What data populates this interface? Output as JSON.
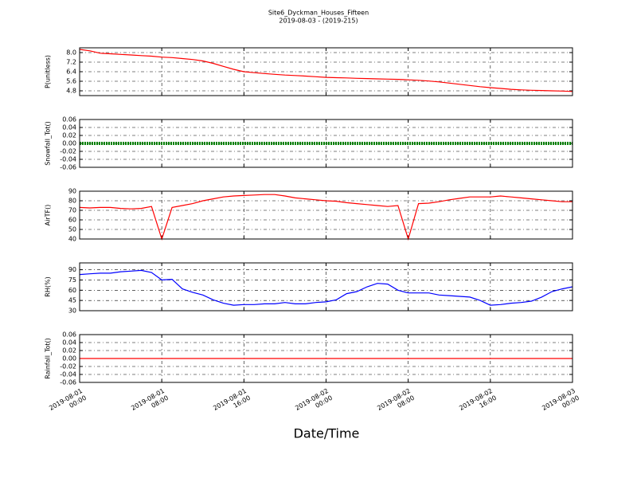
{
  "chart_data": [
    {
      "type": "line",
      "title": "Site6_Dyckman_Houses_Fifteen",
      "subtitle": "2019-08-03 - (2019-215)",
      "ylabel": "P(unitless)",
      "ylim": [
        4.4,
        8.4
      ],
      "yticks": [
        {
          "value": 4.8,
          "label": "4.8"
        },
        5.6,
        6.4,
        7.2,
        {
          "value": 8,
          "label": "8.0"
        }
      ],
      "grid": true,
      "series": [
        {
          "name": "P",
          "color": "#ff0000",
          "x": [
            "2019-08-01 00:00",
            "2019-08-01 01:00",
            "2019-08-01 02:00",
            "2019-08-01 03:00",
            "2019-08-01 04:00",
            "2019-08-01 05:00",
            "2019-08-01 06:00",
            "2019-08-01 07:00",
            "2019-08-01 08:00",
            "2019-08-01 09:00",
            "2019-08-01 10:00",
            "2019-08-01 11:00",
            "2019-08-01 12:00",
            "2019-08-01 13:00",
            "2019-08-01 14:00",
            "2019-08-01 15:00",
            "2019-08-01 16:00",
            "2019-08-01 17:00",
            "2019-08-01 18:00",
            "2019-08-01 19:00",
            "2019-08-01 20:00",
            "2019-08-01 21:00",
            "2019-08-01 22:00",
            "2019-08-01 23:00",
            "2019-08-02 00:00",
            "2019-08-02 01:00",
            "2019-08-02 02:00",
            "2019-08-02 03:00",
            "2019-08-02 04:00",
            "2019-08-02 05:00",
            "2019-08-02 06:00",
            "2019-08-02 07:00",
            "2019-08-02 08:00",
            "2019-08-02 09:00",
            "2019-08-02 10:00",
            "2019-08-02 11:00",
            "2019-08-02 12:00",
            "2019-08-02 13:00",
            "2019-08-02 14:00",
            "2019-08-02 15:00",
            "2019-08-02 16:00",
            "2019-08-02 17:00",
            "2019-08-02 18:00",
            "2019-08-02 19:00",
            "2019-08-02 20:00",
            "2019-08-02 21:00",
            "2019-08-02 22:00",
            "2019-08-02 23:00",
            "2019-08-03 00:00"
          ],
          "values": [
            8.27,
            8.15,
            7.95,
            7.9,
            7.85,
            7.8,
            7.75,
            7.7,
            7.62,
            7.58,
            7.5,
            7.42,
            7.3,
            7.1,
            6.85,
            6.6,
            6.4,
            6.32,
            6.25,
            6.18,
            6.12,
            6.08,
            6.03,
            5.98,
            5.93,
            5.9,
            5.88,
            5.85,
            5.83,
            5.8,
            5.78,
            5.76,
            5.72,
            5.68,
            5.62,
            5.55,
            5.45,
            5.35,
            5.25,
            5.15,
            5.07,
            5.0,
            4.93,
            4.88,
            4.85,
            4.83,
            4.8,
            4.78,
            4.75
          ]
        }
      ]
    },
    {
      "type": "line",
      "ylabel": "Snowfall_Tot()",
      "ylim": [
        -0.06,
        0.06
      ],
      "yticks": [
        -0.06,
        -0.04,
        -0.02,
        {
          "value": 0,
          "label": "0.00"
        },
        0.02,
        0.04,
        0.06
      ],
      "grid": true,
      "series": [
        {
          "name": "Snowfall_Tot",
          "color": "#008000",
          "x": [
            "2019-08-01 00:00",
            "2019-08-01 01:00",
            "2019-08-01 02:00",
            "2019-08-01 03:00",
            "2019-08-01 04:00",
            "2019-08-01 05:00",
            "2019-08-01 06:00",
            "2019-08-01 07:00",
            "2019-08-01 08:00",
            "2019-08-01 09:00",
            "2019-08-01 10:00",
            "2019-08-01 11:00",
            "2019-08-01 12:00",
            "2019-08-01 13:00",
            "2019-08-01 14:00",
            "2019-08-01 15:00",
            "2019-08-01 16:00",
            "2019-08-01 17:00",
            "2019-08-01 18:00",
            "2019-08-01 19:00",
            "2019-08-01 20:00",
            "2019-08-01 21:00",
            "2019-08-01 22:00",
            "2019-08-01 23:00",
            "2019-08-02 00:00",
            "2019-08-02 01:00",
            "2019-08-02 02:00",
            "2019-08-02 03:00",
            "2019-08-02 04:00",
            "2019-08-02 05:00",
            "2019-08-02 06:00",
            "2019-08-02 07:00",
            "2019-08-02 08:00",
            "2019-08-02 09:00",
            "2019-08-02 10:00",
            "2019-08-02 11:00",
            "2019-08-02 12:00",
            "2019-08-02 13:00",
            "2019-08-02 14:00",
            "2019-08-02 15:00",
            "2019-08-02 16:00",
            "2019-08-02 17:00",
            "2019-08-02 18:00",
            "2019-08-02 19:00",
            "2019-08-02 20:00",
            "2019-08-02 21:00",
            "2019-08-02 22:00",
            "2019-08-02 23:00",
            "2019-08-03 00:00"
          ],
          "values": [
            0,
            0,
            0,
            0,
            0,
            0,
            0,
            0,
            0,
            0,
            0,
            0,
            0,
            0,
            0,
            0,
            0,
            0,
            0,
            0,
            0,
            0,
            0,
            0,
            0,
            0,
            0,
            0,
            0,
            0,
            0,
            0,
            0,
            0,
            0,
            0,
            0,
            0,
            0,
            0,
            0,
            0,
            0,
            0,
            0,
            0,
            0,
            0,
            0
          ]
        }
      ]
    },
    {
      "type": "line",
      "ylabel": "AirTF()",
      "ylim": [
        40,
        90
      ],
      "yticks": [
        40,
        50,
        60,
        70,
        80,
        90
      ],
      "grid": true,
      "series": [
        {
          "name": "AirTF",
          "color": "#ff0000",
          "x": [
            "2019-08-01 00:00",
            "2019-08-01 01:00",
            "2019-08-01 02:00",
            "2019-08-01 03:00",
            "2019-08-01 04:00",
            "2019-08-01 05:00",
            "2019-08-01 06:00",
            "2019-08-01 07:00",
            "2019-08-01 08:00",
            "2019-08-01 09:00",
            "2019-08-01 10:00",
            "2019-08-01 11:00",
            "2019-08-01 12:00",
            "2019-08-01 13:00",
            "2019-08-01 14:00",
            "2019-08-01 15:00",
            "2019-08-01 16:00",
            "2019-08-01 17:00",
            "2019-08-01 18:00",
            "2019-08-01 19:00",
            "2019-08-01 20:00",
            "2019-08-01 21:00",
            "2019-08-01 22:00",
            "2019-08-01 23:00",
            "2019-08-02 00:00",
            "2019-08-02 01:00",
            "2019-08-02 02:00",
            "2019-08-02 03:00",
            "2019-08-02 04:00",
            "2019-08-02 05:00",
            "2019-08-02 06:00",
            "2019-08-02 07:00",
            "2019-08-02 08:00",
            "2019-08-02 09:00",
            "2019-08-02 10:00",
            "2019-08-02 11:00",
            "2019-08-02 12:00",
            "2019-08-02 13:00",
            "2019-08-02 14:00",
            "2019-08-02 15:00",
            "2019-08-02 16:00",
            "2019-08-02 17:00",
            "2019-08-02 18:00",
            "2019-08-02 19:00",
            "2019-08-02 20:00",
            "2019-08-02 21:00",
            "2019-08-02 22:00",
            "2019-08-02 23:00",
            "2019-08-03 00:00"
          ],
          "values": [
            73,
            72.5,
            73,
            73,
            72,
            71.5,
            72,
            74,
            40,
            73,
            75,
            77,
            80,
            82,
            84,
            85,
            85.5,
            86,
            86.5,
            86.5,
            85,
            83,
            82,
            81,
            80,
            79.5,
            78,
            77,
            76,
            75,
            74,
            75,
            40,
            77,
            77.5,
            79,
            81,
            82.5,
            84,
            84,
            84,
            85,
            84,
            83,
            82,
            81,
            80,
            79,
            79
          ]
        }
      ]
    },
    {
      "type": "line",
      "ylabel": "RH(%)",
      "ylim": [
        30,
        100
      ],
      "yticks": [
        30,
        45,
        60,
        75,
        90
      ],
      "grid": true,
      "series": [
        {
          "name": "RH",
          "color": "#0000ff",
          "x": [
            "2019-08-01 00:00",
            "2019-08-01 01:00",
            "2019-08-01 02:00",
            "2019-08-01 03:00",
            "2019-08-01 04:00",
            "2019-08-01 05:00",
            "2019-08-01 06:00",
            "2019-08-01 07:00",
            "2019-08-01 08:00",
            "2019-08-01 09:00",
            "2019-08-01 10:00",
            "2019-08-01 11:00",
            "2019-08-01 12:00",
            "2019-08-01 13:00",
            "2019-08-01 14:00",
            "2019-08-01 15:00",
            "2019-08-01 16:00",
            "2019-08-01 17:00",
            "2019-08-01 18:00",
            "2019-08-01 19:00",
            "2019-08-01 20:00",
            "2019-08-01 21:00",
            "2019-08-01 22:00",
            "2019-08-01 23:00",
            "2019-08-02 00:00",
            "2019-08-02 01:00",
            "2019-08-02 02:00",
            "2019-08-02 03:00",
            "2019-08-02 04:00",
            "2019-08-02 05:00",
            "2019-08-02 06:00",
            "2019-08-02 07:00",
            "2019-08-02 08:00",
            "2019-08-02 09:00",
            "2019-08-02 10:00",
            "2019-08-02 11:00",
            "2019-08-02 12:00",
            "2019-08-02 13:00",
            "2019-08-02 14:00",
            "2019-08-02 15:00",
            "2019-08-02 16:00",
            "2019-08-02 17:00",
            "2019-08-02 18:00",
            "2019-08-02 19:00",
            "2019-08-02 20:00",
            "2019-08-02 21:00",
            "2019-08-02 22:00",
            "2019-08-02 23:00",
            "2019-08-03 00:00"
          ],
          "values": [
            83,
            84,
            85,
            85,
            87,
            88,
            89,
            86,
            75,
            76,
            62,
            57,
            53,
            46,
            41,
            38,
            39,
            39,
            40,
            40,
            42,
            40,
            40,
            42,
            43,
            46,
            55,
            58,
            65,
            70,
            69,
            60,
            56,
            56,
            56,
            53,
            52,
            51,
            50,
            45,
            38,
            39,
            41,
            42,
            44,
            50,
            58,
            62,
            65
          ]
        }
      ]
    },
    {
      "type": "line",
      "ylabel": "Rainfall_Tot()",
      "xlabel": "Date/Time",
      "ylim": [
        -0.06,
        0.06
      ],
      "yticks": [
        -0.06,
        -0.04,
        -0.02,
        {
          "value": 0,
          "label": "0.00"
        },
        0.02,
        0.04,
        0.06
      ],
      "grid": true,
      "xlim": [
        "2019-08-01 00:00",
        "2019-08-03 00:00"
      ],
      "xticks": [
        "2019-08-01\n00:00",
        "2019-08-01\n08:00",
        "2019-08-01\n16:00",
        "2019-08-02\n00:00",
        "2019-08-02\n08:00",
        "2019-08-02\n16:00",
        "2019-08-03\n00:00"
      ],
      "series": [
        {
          "name": "Rainfall_Tot",
          "color": "#ff0000",
          "x": [
            "2019-08-01 00:00",
            "2019-08-01 01:00",
            "2019-08-01 02:00",
            "2019-08-01 03:00",
            "2019-08-01 04:00",
            "2019-08-01 05:00",
            "2019-08-01 06:00",
            "2019-08-01 07:00",
            "2019-08-01 08:00",
            "2019-08-01 09:00",
            "2019-08-01 10:00",
            "2019-08-01 11:00",
            "2019-08-01 12:00",
            "2019-08-01 13:00",
            "2019-08-01 14:00",
            "2019-08-01 15:00",
            "2019-08-01 16:00",
            "2019-08-01 17:00",
            "2019-08-01 18:00",
            "2019-08-01 19:00",
            "2019-08-01 20:00",
            "2019-08-01 21:00",
            "2019-08-01 22:00",
            "2019-08-01 23:00",
            "2019-08-02 00:00",
            "2019-08-02 01:00",
            "2019-08-02 02:00",
            "2019-08-02 03:00",
            "2019-08-02 04:00",
            "2019-08-02 05:00",
            "2019-08-02 06:00",
            "2019-08-02 07:00",
            "2019-08-02 08:00",
            "2019-08-02 09:00",
            "2019-08-02 10:00",
            "2019-08-02 11:00",
            "2019-08-02 12:00",
            "2019-08-02 13:00",
            "2019-08-02 14:00",
            "2019-08-02 15:00",
            "2019-08-02 16:00",
            "2019-08-02 17:00",
            "2019-08-02 18:00",
            "2019-08-02 19:00",
            "2019-08-02 20:00",
            "2019-08-02 21:00",
            "2019-08-02 22:00",
            "2019-08-02 23:00",
            "2019-08-03 00:00"
          ],
          "values": [
            0,
            0,
            0,
            0,
            0,
            0,
            0,
            0,
            0,
            0,
            0,
            0,
            0,
            0,
            0,
            0,
            0,
            0,
            0,
            0,
            0,
            0,
            0,
            0,
            0,
            0,
            0,
            0,
            0,
            0,
            0,
            0,
            0,
            0,
            0,
            0,
            0,
            0,
            0,
            0,
            0,
            0,
            0,
            0,
            0,
            0,
            0,
            0,
            0
          ]
        }
      ]
    }
  ]
}
